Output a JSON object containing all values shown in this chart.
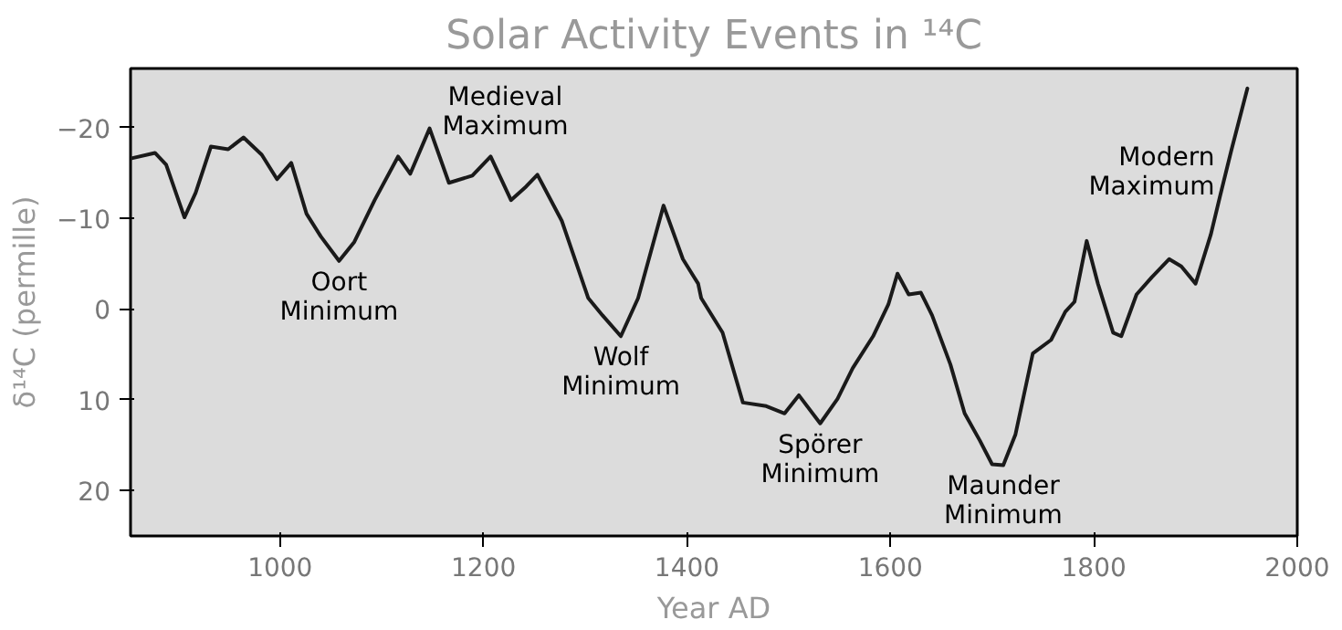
{
  "chart_data": {
    "type": "line",
    "title": "Solar Activity Events in ¹⁴C",
    "xlabel": "Year AD",
    "ylabel": "δ¹⁴C (permille)",
    "xlim": [
      853,
      2000
    ],
    "ylim": [
      25,
      -26.5
    ],
    "xticks": [
      1000,
      1200,
      1400,
      1600,
      1800,
      2000
    ],
    "yticks": [
      -20,
      -10,
      0,
      10,
      20
    ],
    "grid": false,
    "line_style": "solid",
    "marker": "none",
    "series": [
      {
        "color": "#1a1a1a",
        "x": [
          854,
          877,
          888,
          906,
          917,
          932,
          949,
          964,
          982,
          997,
          1011,
          1026,
          1040,
          1058,
          1073,
          1093,
          1116,
          1128,
          1147,
          1166,
          1189,
          1207,
          1227,
          1242,
          1253,
          1277,
          1303,
          1317,
          1335,
          1352,
          1377,
          1396,
          1411,
          1414,
          1435,
          1455,
          1478,
          1496,
          1510,
          1531,
          1548,
          1563,
          1583,
          1598,
          1607,
          1618,
          1630,
          1641,
          1659,
          1673,
          1688,
          1700,
          1711,
          1723,
          1740,
          1758,
          1772,
          1781,
          1793,
          1804,
          1819,
          1827,
          1842,
          1857,
          1874,
          1886,
          1900,
          1915,
          1924,
          1935,
          1951
        ],
        "values": [
          -16.6,
          -17.2,
          -15.9,
          -10.1,
          -12.8,
          -17.9,
          -17.6,
          -18.9,
          -17.0,
          -14.3,
          -16.1,
          -10.5,
          -8.0,
          -5.3,
          -7.4,
          -12.0,
          -16.8,
          -14.9,
          -19.9,
          -13.9,
          -14.7,
          -16.8,
          -12.0,
          -13.5,
          -14.8,
          -9.7,
          -1.2,
          0.7,
          3.0,
          -1.2,
          -11.4,
          -5.5,
          -2.8,
          -1.2,
          2.6,
          10.3,
          10.7,
          11.5,
          9.5,
          12.6,
          9.9,
          6.5,
          3.0,
          -0.5,
          -3.9,
          -1.6,
          -1.8,
          0.7,
          6.1,
          11.5,
          14.5,
          17.1,
          17.2,
          13.8,
          4.9,
          3.4,
          0.3,
          -0.8,
          -7.5,
          -2.8,
          2.6,
          3.0,
          -1.6,
          -3.5,
          -5.5,
          -4.7,
          -2.8,
          -8.2,
          -12.4,
          -17.4,
          -24.3
        ]
      }
    ],
    "annotations": [
      {
        "text": "Oort Minimum",
        "x": 1058,
        "y": -5.3
      },
      {
        "text": "Medieval Maximum",
        "x": 1207,
        "y": -16.8
      },
      {
        "text": "Wolf Minimum",
        "x": 1335,
        "y": 3.0
      },
      {
        "text": "Spörer Minimum",
        "x": 1531,
        "y": 12.6
      },
      {
        "text": "Maunder Minimum",
        "x": 1711,
        "y": 17.2
      },
      {
        "text": "Modern Maximum",
        "x": 1951,
        "y": -24.3
      }
    ]
  }
}
